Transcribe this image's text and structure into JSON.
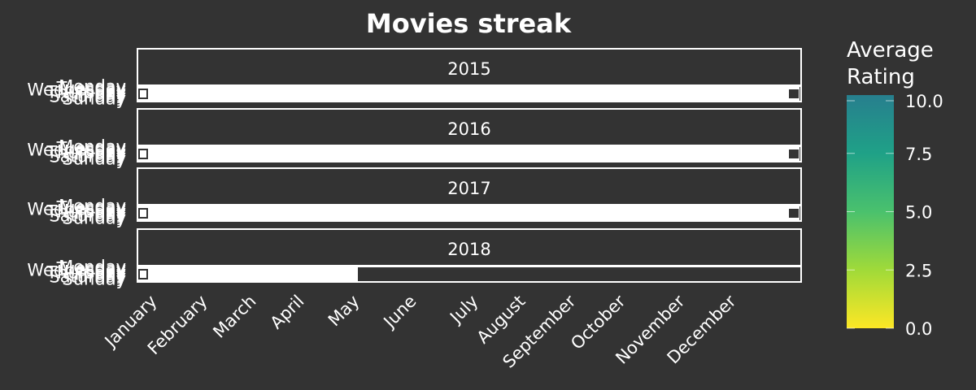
{
  "chart_data": {
    "type": "heatmap",
    "title": "Movies streak",
    "years": [
      "2015",
      "2016",
      "2017",
      "2018"
    ],
    "weekdays": [
      "Monday",
      "Tuesday",
      "Wednesday",
      "Thursday",
      "Friday",
      "Saturday",
      "Sunday"
    ],
    "months": [
      "January",
      "February",
      "March",
      "April",
      "May",
      "June",
      "July",
      "August",
      "September",
      "October",
      "November",
      "December"
    ],
    "colorbar": {
      "title": "Average\nRating",
      "range": [
        0,
        10
      ],
      "ticks": [
        "0.0",
        "2.5",
        "5.0",
        "7.5",
        "10.0"
      ],
      "tick_values": [
        0,
        2.5,
        5,
        7.5,
        10
      ],
      "colors": [
        "#fde725",
        "#a0da39",
        "#4ac16d",
        "#1fa187",
        "#277f8e"
      ]
    },
    "colors": {
      "background": "#333333",
      "text": "#ffffff",
      "empty_day": "#ffffff",
      "missing_day": "#333333"
    },
    "grid": false,
    "legend_position": "right"
  }
}
